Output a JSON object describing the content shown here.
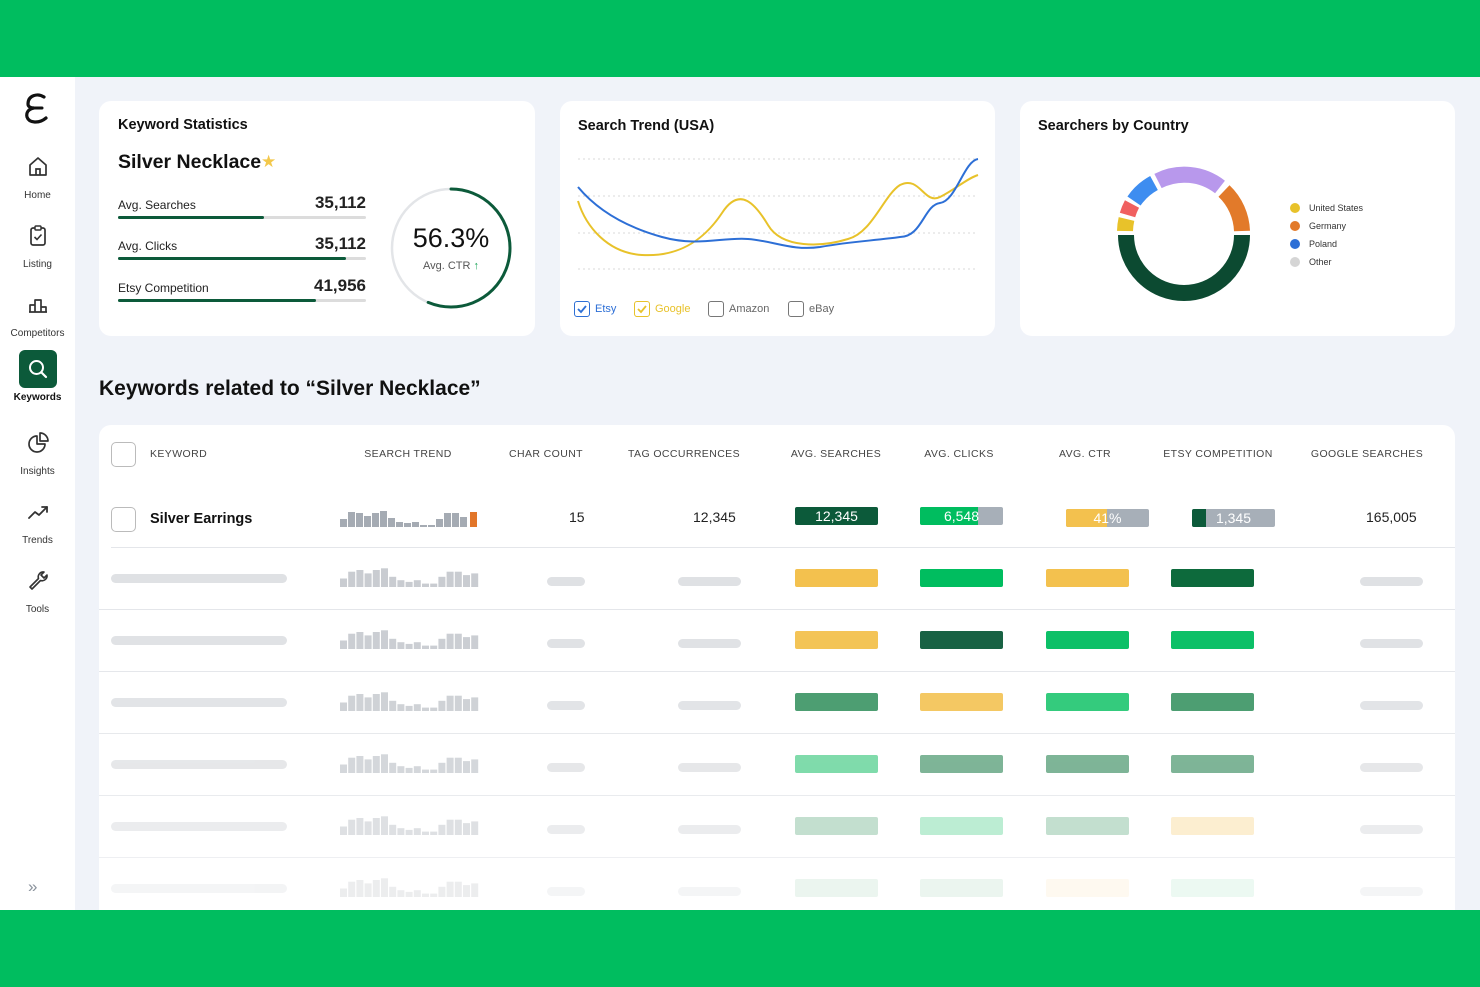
{
  "nav": {
    "items": [
      {
        "label": "Home",
        "icon": "home-icon"
      },
      {
        "label": "Listing",
        "icon": "clipboard-icon"
      },
      {
        "label": "Competitors",
        "icon": "podium-icon"
      },
      {
        "label": "Keywords",
        "icon": "search-icon",
        "active": true
      },
      {
        "label": "Insights",
        "icon": "pie-chart-icon"
      },
      {
        "label": "Trends",
        "icon": "trend-up-icon"
      },
      {
        "label": "Tools",
        "icon": "wrench-icon"
      }
    ],
    "expand_glyph": "»"
  },
  "stats": {
    "title": "Keyword Statistics",
    "keyword": "Silver Necklace",
    "star": "★",
    "rows": [
      {
        "label": "Avg. Searches",
        "value": "35,112",
        "fill": 0.59
      },
      {
        "label": "Avg. Clicks",
        "value": "35,112",
        "fill": 0.92
      },
      {
        "label": "Etsy Competition",
        "value": "41,956",
        "fill": 0.8
      }
    ],
    "ctr_value": "56.3%",
    "ctr_label": "Avg. CTR",
    "ctr_arrow": "↑",
    "ctr_fraction": 0.563
  },
  "trend": {
    "title": "Search Trend (USA)",
    "options": [
      {
        "label": "Etsy",
        "checked": true,
        "color": "#2d6fd6"
      },
      {
        "label": "Google",
        "checked": true,
        "color": "#e8c22a"
      },
      {
        "label": "Amazon",
        "checked": false,
        "color": "#666666"
      },
      {
        "label": "eBay",
        "checked": false,
        "color": "#666666"
      }
    ]
  },
  "country": {
    "title": "Searchers by Country",
    "legend": [
      {
        "label": "United States",
        "color": "#e8c22a"
      },
      {
        "label": "Germany",
        "color": "#e27a2a"
      },
      {
        "label": "Poland",
        "color": "#2d6fd6"
      },
      {
        "label": "Other",
        "color": "#d5d5d5"
      }
    ]
  },
  "keywords": {
    "title": "Keywords related to “Silver Necklace”",
    "columns": [
      "KEYWORD",
      "SEARCH TREND",
      "CHAR COUNT",
      "TAG OCCURRENCES",
      "AVG. SEARCHES",
      "AVG. CLICKS",
      "AVG. CTR",
      "ETSY COMPETITION",
      "GOOGLE SEARCHES"
    ],
    "first_row": {
      "keyword": "Silver Earrings",
      "char_count": "15",
      "tag_occurrences": "12,345",
      "avg_searches": "12,345",
      "avg_clicks": "6,548",
      "avg_ctr": "41%",
      "etsy_competition": "1,345",
      "google_searches": "165,005"
    }
  },
  "colors": {
    "brand_green": "#00bd5f",
    "dark_green": "#0c5a3a",
    "yellow": "#f3c14e",
    "orange": "#e27a2a",
    "blue": "#2d6fd6"
  }
}
